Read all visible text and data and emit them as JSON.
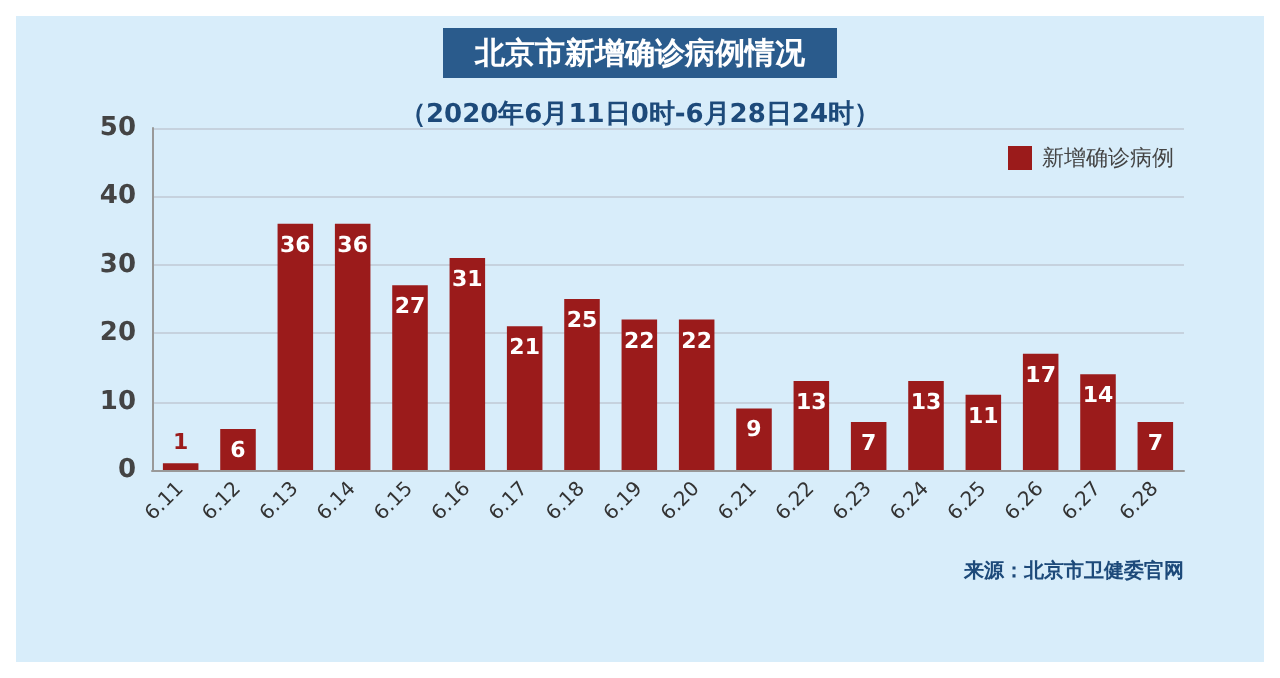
{
  "chart_data": {
    "type": "bar",
    "title": "北京市新增确诊病例情况",
    "subtitle": "（2020年6月11日0时-6月28日24时）",
    "categories": [
      "6.11",
      "6.12",
      "6.13",
      "6.14",
      "6.15",
      "6.16",
      "6.17",
      "6.18",
      "6.19",
      "6.20",
      "6.21",
      "6.22",
      "6.23",
      "6.24",
      "6.25",
      "6.26",
      "6.27",
      "6.28"
    ],
    "series": [
      {
        "name": "新增确诊病例",
        "color": "#9b1b1b",
        "values": [
          1,
          6,
          36,
          36,
          27,
          31,
          21,
          25,
          22,
          22,
          9,
          13,
          7,
          13,
          11,
          17,
          14,
          7
        ]
      }
    ],
    "ylim": [
      0,
      50
    ],
    "yticks": [
      0,
      10,
      20,
      30,
      40,
      50
    ],
    "grid": "y",
    "legend": "top right",
    "data_labels": true,
    "annotations": [
      "来源：北京市卫健委官网"
    ]
  }
}
